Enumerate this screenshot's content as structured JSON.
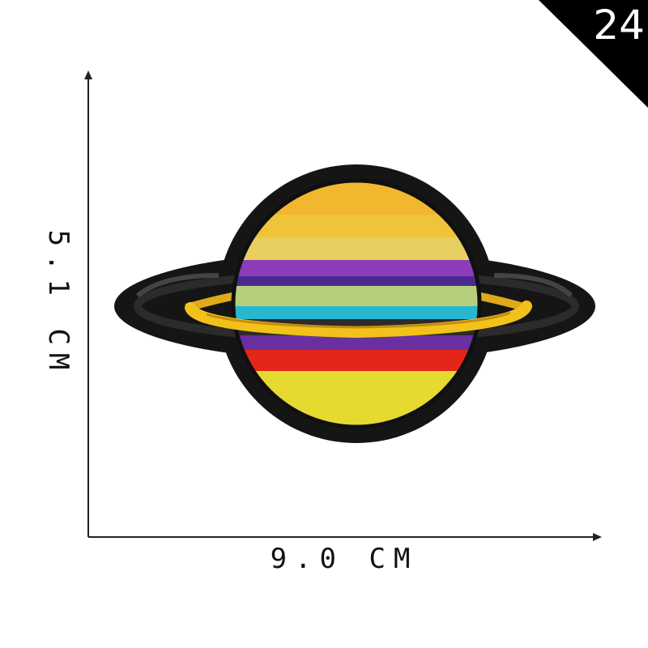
{
  "badge": {
    "number": "24",
    "color": "#000000"
  },
  "dimensions": {
    "width_label": "9.0 CM",
    "height_label": "5.1 CM"
  },
  "patch": {
    "subject": "embroidered planet patch",
    "border_color": "#151515",
    "ring_color": "#f2c21a",
    "stripe_colors": [
      "#f0c23a",
      "#e8d060",
      "#5b2f9c",
      "#b6cf7a",
      "#28b7cf",
      "#e32618",
      "#e6d930"
    ]
  }
}
